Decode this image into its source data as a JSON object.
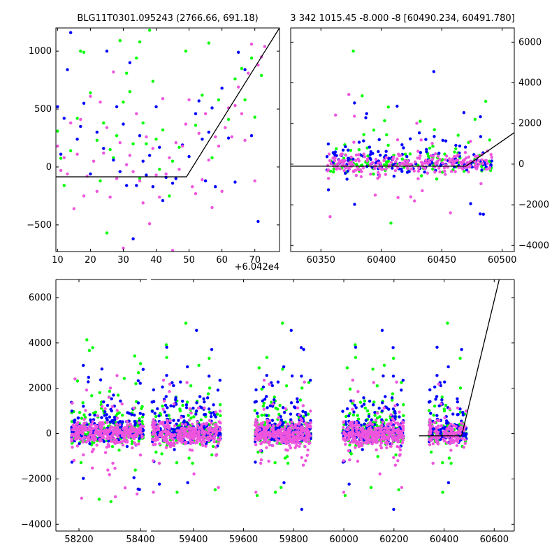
{
  "figure": {
    "background": "#ffffff",
    "colors": {
      "green": "#00ff00",
      "blue": "#0000ff",
      "magenta": "#ee55dd",
      "line": "#000000"
    }
  },
  "chart_data": [
    {
      "id": "top-left",
      "type": "scatter",
      "title": "BLG11T0301.095243 (2766.66, 691.18)",
      "xlabel": "",
      "ylabel": "",
      "xlim": [
        9.5,
        77.5
      ],
      "ylim": [
        -730,
        1200
      ],
      "xticks": [
        10,
        20,
        30,
        40,
        50,
        60,
        70
      ],
      "yticks": [
        -500,
        0,
        500,
        1000
      ],
      "offset_text": "+6.042e4",
      "grid": false,
      "y_axis_side": "left",
      "model_line": [
        [
          9.5,
          -85
        ],
        [
          49.2,
          -85
        ],
        [
          77.5,
          1200
        ]
      ],
      "series": [
        {
          "color": "green",
          "points": [
            [
              10,
              310
            ],
            [
              11,
              75
            ],
            [
              12,
              -160
            ],
            [
              14,
              140
            ],
            [
              16,
              420
            ],
            [
              17,
              1000
            ],
            [
              18,
              990
            ],
            [
              20,
              640
            ],
            [
              22,
              230
            ],
            [
              23,
              -120
            ],
            [
              24,
              380
            ],
            [
              25,
              -570
            ],
            [
              26,
              150
            ],
            [
              27,
              80
            ],
            [
              28,
              270
            ],
            [
              29,
              1090
            ],
            [
              30,
              560
            ],
            [
              31,
              810
            ],
            [
              32,
              650
            ],
            [
              33,
              200
            ],
            [
              34,
              940
            ],
            [
              35,
              1080
            ],
            [
              35,
              -100
            ],
            [
              36,
              380
            ],
            [
              37,
              200
            ],
            [
              38,
              1180
            ],
            [
              39,
              740
            ],
            [
              40,
              240
            ],
            [
              41,
              -20
            ],
            [
              42,
              320
            ],
            [
              44,
              -250
            ],
            [
              45,
              50
            ],
            [
              47,
              170
            ],
            [
              49,
              1000
            ],
            [
              52,
              360
            ],
            [
              54,
              620
            ],
            [
              56,
              1070
            ],
            [
              57,
              80
            ],
            [
              59,
              580
            ],
            [
              62,
              410
            ],
            [
              64,
              760
            ],
            [
              66,
              850
            ],
            [
              67,
              580
            ],
            [
              69,
              940
            ],
            [
              70,
              430
            ],
            [
              72,
              790
            ]
          ]
        },
        {
          "color": "blue",
          "points": [
            [
              10,
              520
            ],
            [
              11,
              110
            ],
            [
              12,
              420
            ],
            [
              13,
              840
            ],
            [
              14,
              1160
            ],
            [
              16,
              240
            ],
            [
              17,
              350
            ],
            [
              18,
              550
            ],
            [
              20,
              -60
            ],
            [
              22,
              300
            ],
            [
              24,
              160
            ],
            [
              25,
              1000
            ],
            [
              27,
              60
            ],
            [
              28,
              520
            ],
            [
              29,
              -40
            ],
            [
              30,
              370
            ],
            [
              31,
              -160
            ],
            [
              32,
              900
            ],
            [
              33,
              -620
            ],
            [
              34,
              -160
            ],
            [
              35,
              270
            ],
            [
              36,
              50
            ],
            [
              37,
              -70
            ],
            [
              38,
              100
            ],
            [
              39,
              -170
            ],
            [
              40,
              520
            ],
            [
              41,
              170
            ],
            [
              42,
              -290
            ],
            [
              43,
              -90
            ],
            [
              45,
              -140
            ],
            [
              46,
              -100
            ],
            [
              48,
              190
            ],
            [
              50,
              90
            ],
            [
              52,
              460
            ],
            [
              53,
              570
            ],
            [
              54,
              240
            ],
            [
              55,
              -120
            ],
            [
              56,
              300
            ],
            [
              57,
              510
            ],
            [
              58,
              -170
            ],
            [
              60,
              680
            ],
            [
              62,
              250
            ],
            [
              64,
              -130
            ],
            [
              65,
              990
            ],
            [
              67,
              840
            ],
            [
              69,
              270
            ],
            [
              71,
              -470
            ]
          ]
        },
        {
          "color": "magenta",
          "points": [
            [
              10,
              180
            ],
            [
              11,
              -30
            ],
            [
              12,
              80
            ],
            [
              13,
              -60
            ],
            [
              14,
              380
            ],
            [
              15,
              -360
            ],
            [
              16,
              110
            ],
            [
              17,
              410
            ],
            [
              18,
              -250
            ],
            [
              19,
              -80
            ],
            [
              20,
              610
            ],
            [
              21,
              50
            ],
            [
              22,
              -210
            ],
            [
              23,
              560
            ],
            [
              24,
              120
            ],
            [
              25,
              340
            ],
            [
              26,
              -260
            ],
            [
              27,
              820
            ],
            [
              28,
              -100
            ],
            [
              29,
              210
            ],
            [
              30,
              -700
            ],
            [
              31,
              20
            ],
            [
              32,
              100
            ],
            [
              33,
              -40
            ],
            [
              34,
              460
            ],
            [
              35,
              -120
            ],
            [
              36,
              -310
            ],
            [
              37,
              260
            ],
            [
              38,
              -490
            ],
            [
              39,
              160
            ],
            [
              40,
              -70
            ],
            [
              41,
              -260
            ],
            [
              42,
              590
            ],
            [
              43,
              -60
            ],
            [
              44,
              80
            ],
            [
              45,
              -720
            ],
            [
              46,
              210
            ],
            [
              47,
              -20
            ],
            [
              48,
              180
            ],
            [
              49,
              370
            ],
            [
              50,
              580
            ],
            [
              51,
              -170
            ],
            [
              52,
              -230
            ],
            [
              53,
              290
            ],
            [
              54,
              -110
            ],
            [
              55,
              460
            ],
            [
              56,
              60
            ],
            [
              57,
              -350
            ],
            [
              58,
              260
            ],
            [
              59,
              180
            ],
            [
              60,
              -210
            ],
            [
              61,
              340
            ],
            [
              62,
              510
            ],
            [
              63,
              260
            ],
            [
              64,
              530
            ],
            [
              65,
              690
            ],
            [
              66,
              460
            ],
            [
              67,
              230
            ],
            [
              68,
              810
            ],
            [
              69,
              1060
            ],
            [
              70,
              -120
            ],
            [
              71,
              880
            ],
            [
              72,
              950
            ],
            [
              73,
              1040
            ]
          ]
        }
      ]
    },
    {
      "id": "top-right",
      "type": "scatter",
      "title": "3 342 1015.45 -8.000 -8 [60490.234, 60491.780]",
      "xlabel": "",
      "ylabel": "",
      "xlim": [
        60325,
        60510
      ],
      "ylim": [
        -4300,
        6700
      ],
      "xticks": [
        60350,
        60400,
        60450,
        60500
      ],
      "yticks": [
        -4000,
        -2000,
        0,
        2000,
        4000,
        6000
      ],
      "grid": false,
      "y_axis_side": "right",
      "model_line": [
        [
          60325,
          -100
        ],
        [
          60470,
          -100
        ],
        [
          60510,
          1550
        ]
      ]
    },
    {
      "id": "bottom",
      "type": "scatter",
      "title": "",
      "xlabel": "",
      "ylabel": "",
      "xlim": [
        58125,
        60680
      ],
      "ylim": [
        -4300,
        6800
      ],
      "xticks": [
        58200,
        58400,
        59400,
        59600,
        59800,
        60000,
        60200,
        60400,
        60600
      ],
      "yticks": [
        -4000,
        -2000,
        0,
        2000,
        4000,
        6000
      ],
      "grid": false,
      "y_axis_side": "left",
      "axis_break": [
        58425,
        59225
      ],
      "seasons": [
        [
          58175,
          58410
        ],
        [
          59235,
          59510
        ],
        [
          59645,
          59870
        ],
        [
          59995,
          60240
        ],
        [
          60340,
          60490
        ]
      ],
      "model_line": [
        [
          60300,
          -100
        ],
        [
          60470,
          -100
        ],
        [
          60620,
          6800
        ]
      ]
    }
  ]
}
